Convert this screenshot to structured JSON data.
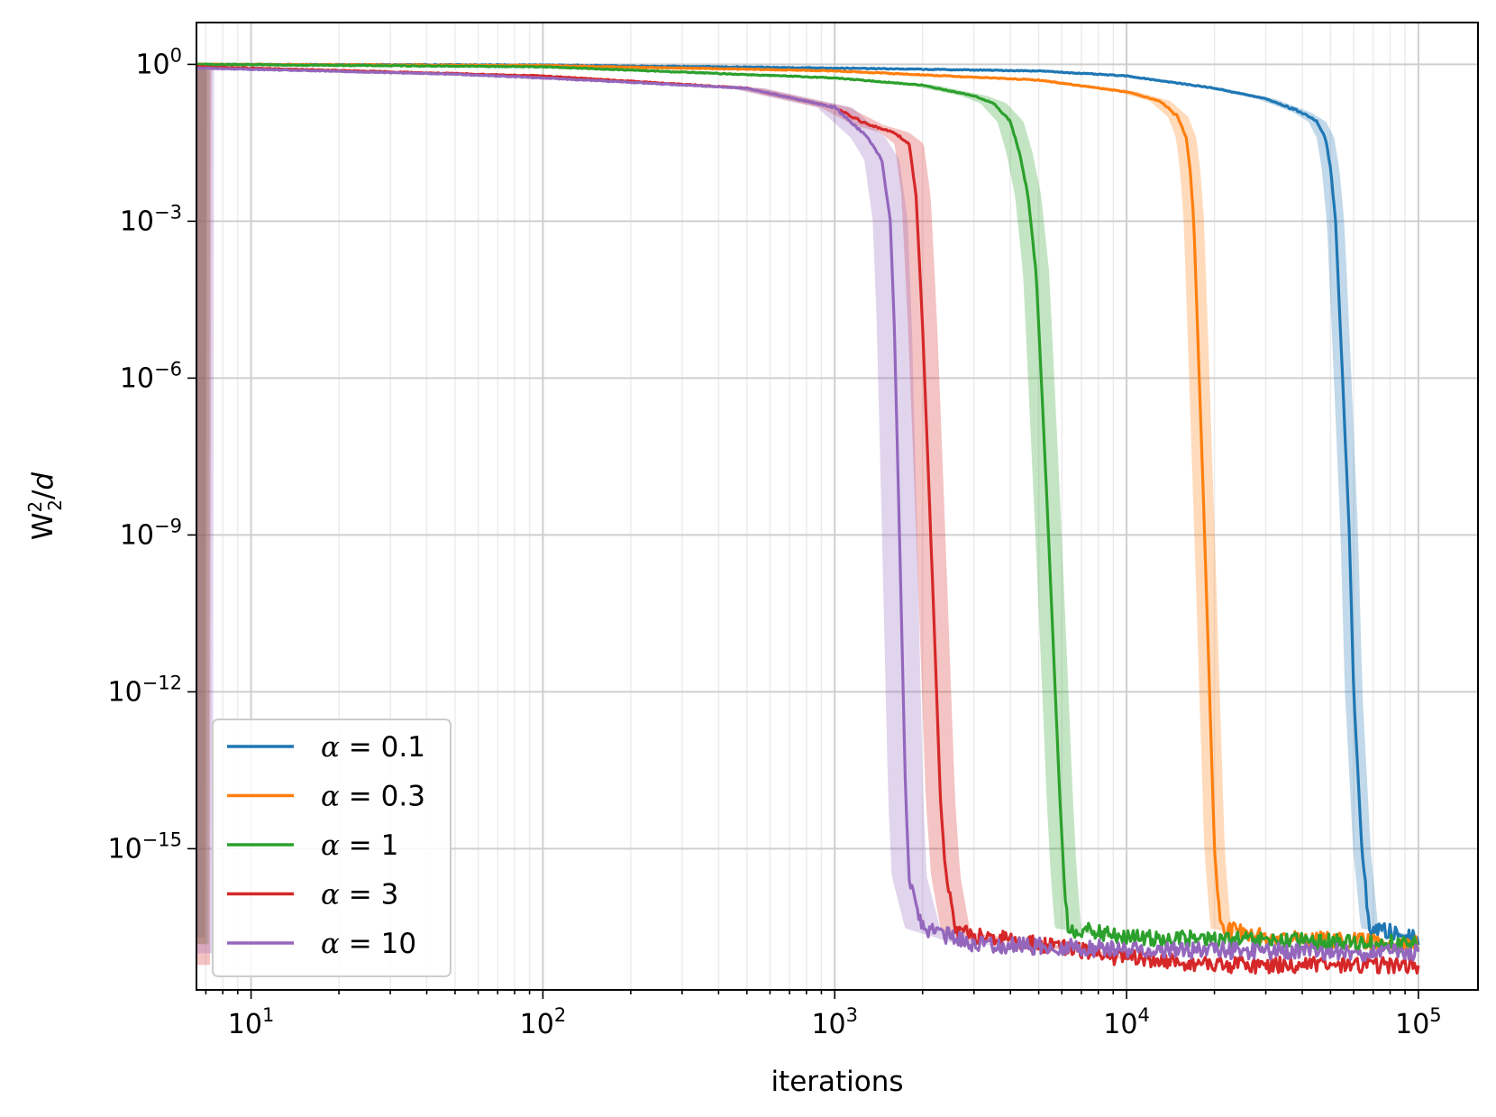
{
  "chart_data": {
    "type": "line",
    "xlabel": "iterations",
    "ylabel": {
      "base": "W",
      "sup": "2",
      "sub": "2",
      "rest": "/",
      "italic": "d"
    },
    "xscale": "log",
    "yscale": "log",
    "xlim": [
      6.5,
      160000
    ],
    "ylim_exponent": [
      -17.7,
      0.8
    ],
    "grid": "on (major and minor)",
    "legend_position": "lower-left",
    "x_ticks": [
      {
        "base": "10",
        "exp": "1",
        "value": 10
      },
      {
        "base": "10",
        "exp": "2",
        "value": 100
      },
      {
        "base": "10",
        "exp": "3",
        "value": 1000
      },
      {
        "base": "10",
        "exp": "4",
        "value": 10000
      },
      {
        "base": "10",
        "exp": "5",
        "value": 100000
      }
    ],
    "y_ticks": [
      {
        "base": "10",
        "exp": "0",
        "value": 1
      },
      {
        "base": "10",
        "exp": "−3",
        "value": 0.001
      },
      {
        "base": "10",
        "exp": "−6",
        "value": 1e-06
      },
      {
        "base": "10",
        "exp": "−9",
        "value": 1e-09
      },
      {
        "base": "10",
        "exp": "−12",
        "value": 1e-12
      },
      {
        "base": "10",
        "exp": "−15",
        "value": 1e-15
      }
    ],
    "series": [
      {
        "name": "α = 0.1",
        "legend_label": {
          "symbol": "α",
          "rest": " = 0.1"
        },
        "color": "#1f77b4",
        "band_halfwidth_log10": 0.03,
        "points": [
          [
            6.5,
            1.0
          ],
          [
            100,
            0.97
          ],
          [
            1000,
            0.85
          ],
          [
            5000,
            0.75
          ],
          [
            10000,
            0.6
          ],
          [
            20000,
            0.35
          ],
          [
            30000,
            0.22
          ],
          [
            40000,
            0.12
          ],
          [
            45000,
            0.08
          ],
          [
            48000,
            0.04
          ],
          [
            50000,
            0.01
          ],
          [
            52000,
            0.001
          ],
          [
            55000,
            1e-06
          ],
          [
            58000,
            1e-09
          ],
          [
            60000,
            1e-12
          ],
          [
            64000,
            1e-15
          ],
          [
            68000,
            3e-17
          ],
          [
            80000,
            2.5e-17
          ],
          [
            100000,
            2e-17
          ]
        ]
      },
      {
        "name": "α = 0.3",
        "legend_label": {
          "symbol": "α",
          "rest": " = 0.3"
        },
        "color": "#ff7f0e",
        "band_halfwidth_log10": 0.035,
        "points": [
          [
            6.5,
            1.0
          ],
          [
            100,
            0.95
          ],
          [
            1000,
            0.75
          ],
          [
            5000,
            0.5
          ],
          [
            10000,
            0.3
          ],
          [
            13000,
            0.2
          ],
          [
            15000,
            0.1
          ],
          [
            16000,
            0.04
          ],
          [
            16500,
            0.01
          ],
          [
            17000,
            0.001
          ],
          [
            17500,
            1e-05
          ],
          [
            18000,
            1e-07
          ],
          [
            18500,
            1e-09
          ],
          [
            19000,
            1e-11
          ],
          [
            19500,
            1e-13
          ],
          [
            20000,
            1e-15
          ],
          [
            21000,
            3e-17
          ],
          [
            30000,
            2e-17
          ],
          [
            100000,
            1.5e-17
          ]
        ]
      },
      {
        "name": "α = 1",
        "legend_label": {
          "symbol": "α",
          "rest": " = 1"
        },
        "color": "#2ca02c",
        "band_halfwidth_log10": 0.045,
        "points": [
          [
            6.5,
            1.0
          ],
          [
            100,
            0.9
          ],
          [
            1000,
            0.55
          ],
          [
            2000,
            0.4
          ],
          [
            3000,
            0.25
          ],
          [
            3500,
            0.18
          ],
          [
            4000,
            0.08
          ],
          [
            4300,
            0.02
          ],
          [
            4600,
            0.003
          ],
          [
            4900,
            0.0001
          ],
          [
            5100,
            1e-06
          ],
          [
            5300,
            1e-08
          ],
          [
            5500,
            1e-10
          ],
          [
            5700,
            1e-12
          ],
          [
            5900,
            1e-14
          ],
          [
            6100,
            3e-16
          ],
          [
            6300,
            3e-17
          ],
          [
            10000,
            2e-17
          ],
          [
            100000,
            1.5e-17
          ]
        ]
      },
      {
        "name": "α = 3",
        "legend_label": {
          "symbol": "α",
          "rest": " = 3"
        },
        "color": "#d62728",
        "band_halfwidth_log10": 0.05,
        "points": [
          [
            6.5,
            0.9
          ],
          [
            100,
            0.6
          ],
          [
            500,
            0.35
          ],
          [
            1000,
            0.15
          ],
          [
            1300,
            0.07
          ],
          [
            1600,
            0.05
          ],
          [
            1800,
            0.03
          ],
          [
            1900,
            0.003
          ],
          [
            2000,
            1e-05
          ],
          [
            2100,
            1e-08
          ],
          [
            2200,
            1e-11
          ],
          [
            2300,
            1e-14
          ],
          [
            2400,
            3e-16
          ],
          [
            2600,
            2.5e-17
          ],
          [
            5000,
            1.5e-17
          ],
          [
            10000,
            8e-18
          ],
          [
            20000,
            6e-18
          ],
          [
            100000,
            6e-18
          ]
        ]
      },
      {
        "name": "α = 10",
        "legend_label": {
          "symbol": "α",
          "rest": " = 10"
        },
        "color": "#9467bd",
        "band_halfwidth_log10": 0.06,
        "points": [
          [
            6.5,
            0.85
          ],
          [
            50,
            0.65
          ],
          [
            100,
            0.55
          ],
          [
            500,
            0.35
          ],
          [
            1000,
            0.15
          ],
          [
            1300,
            0.04
          ],
          [
            1450,
            0.015
          ],
          [
            1550,
            0.001
          ],
          [
            1600,
            1e-05
          ],
          [
            1650,
            1e-08
          ],
          [
            1700,
            1e-11
          ],
          [
            1750,
            1e-14
          ],
          [
            1800,
            3e-16
          ],
          [
            2000,
            3e-17
          ],
          [
            3000,
            1.5e-17
          ],
          [
            10000,
            1.2e-17
          ],
          [
            100000,
            1e-17
          ]
        ]
      }
    ]
  }
}
